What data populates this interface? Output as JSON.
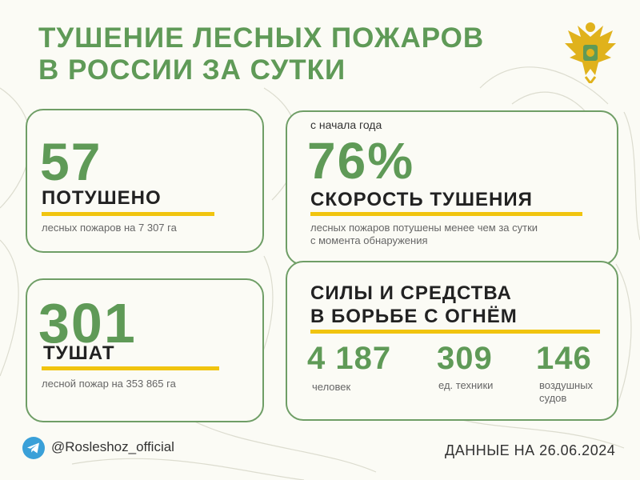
{
  "header": {
    "title_line1": "ТУШЕНИЕ ЛЕСНЫХ ПОЖАРОВ",
    "title_line2": "В РОССИИ ЗА СУТКИ",
    "emblem_icon": "double-headed-eagle-icon"
  },
  "extinguished": {
    "value": "57",
    "label": "ПОТУШЕНО",
    "note": "лесных пожаров на 7 307 га"
  },
  "speed": {
    "period": "с начала года",
    "value": "76%",
    "label": "СКОРОСТЬ ТУШЕНИЯ",
    "note_line1": "лесных пожаров потушены менее чем за сутки",
    "note_line2": "с момента обнаружения"
  },
  "active": {
    "value": "301",
    "label": "ТУШАТ",
    "note": "лесной пожар на 353 865 га"
  },
  "forces": {
    "title_line1": "СИЛЫ И СРЕДСТВА",
    "title_line2": "В БОРЬБЕ С ОГНЁМ",
    "people_value": "4 187",
    "people_label": "человек",
    "vehicles_value": "309",
    "vehicles_label": "ед. техники",
    "aircraft_value": "146",
    "aircraft_label_line1": "воздушных",
    "aircraft_label_line2": "судов"
  },
  "footer": {
    "telegram_icon": "telegram-icon",
    "handle": "@Rosleshoz_official",
    "date": "ДАННЫЕ НА 26.06.2024"
  },
  "colors": {
    "green": "#5f9a57",
    "yellow": "#f1c40f",
    "emblem_gold": "#e0b21c",
    "telegram": "#3aa0d8"
  }
}
